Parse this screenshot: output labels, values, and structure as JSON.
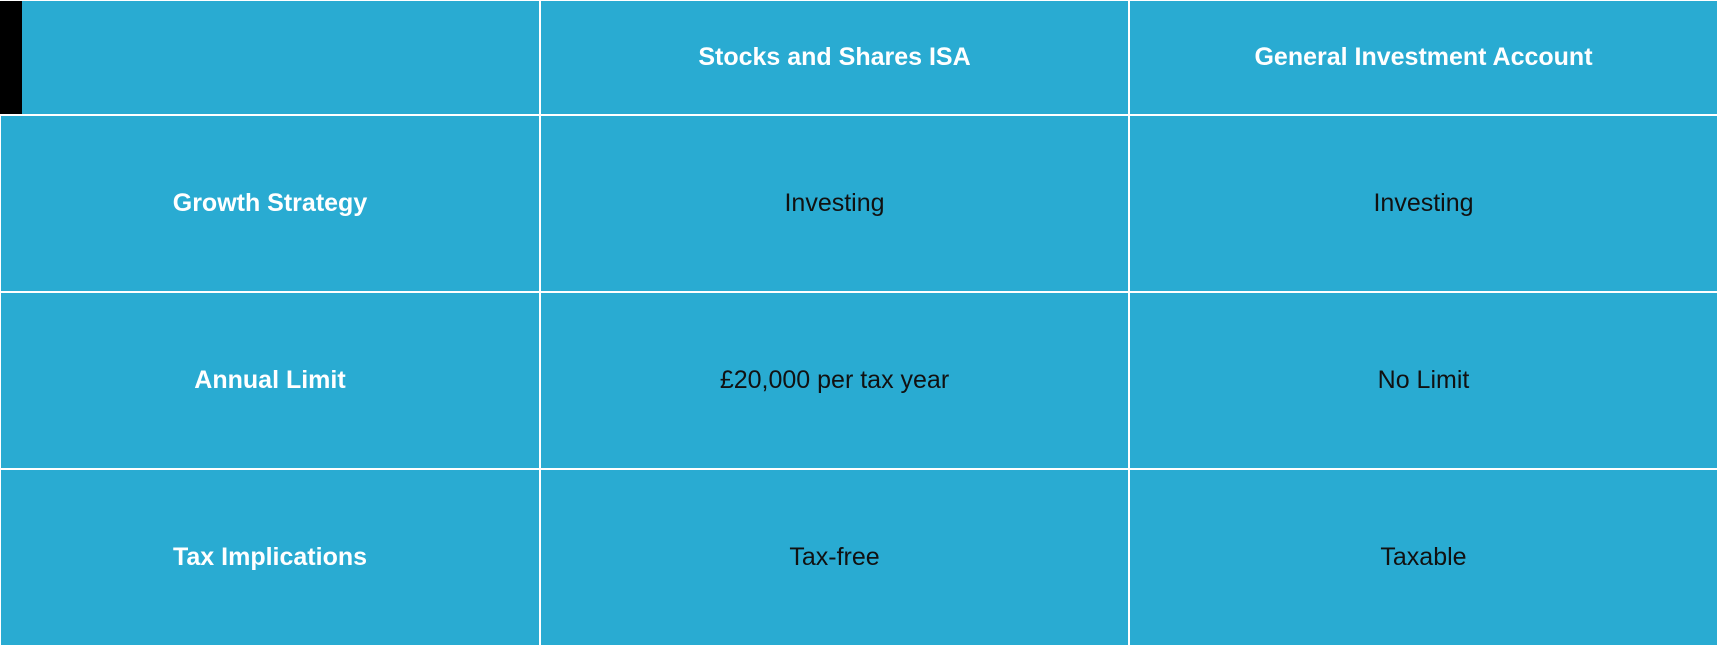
{
  "table": {
    "type": "table",
    "background_color": "#29abd2",
    "border_color": "#ffffff",
    "header_text_color": "#ffffff",
    "value_text_color": "#111111",
    "font_size_header": 25,
    "font_size_value": 25,
    "columns": [
      "",
      "Stocks and Shares ISA",
      "General Investment Account"
    ],
    "rows": [
      {
        "label": "Growth Strategy",
        "values": [
          "Investing",
          "Investing"
        ]
      },
      {
        "label": "Annual Limit",
        "values": [
          "£20,000 per tax year",
          "No Limit"
        ]
      },
      {
        "label": "Tax Implications",
        "values": [
          "Tax-free",
          "Taxable"
        ]
      }
    ],
    "left_strip_color": "#000000",
    "left_strip_width": 22
  }
}
